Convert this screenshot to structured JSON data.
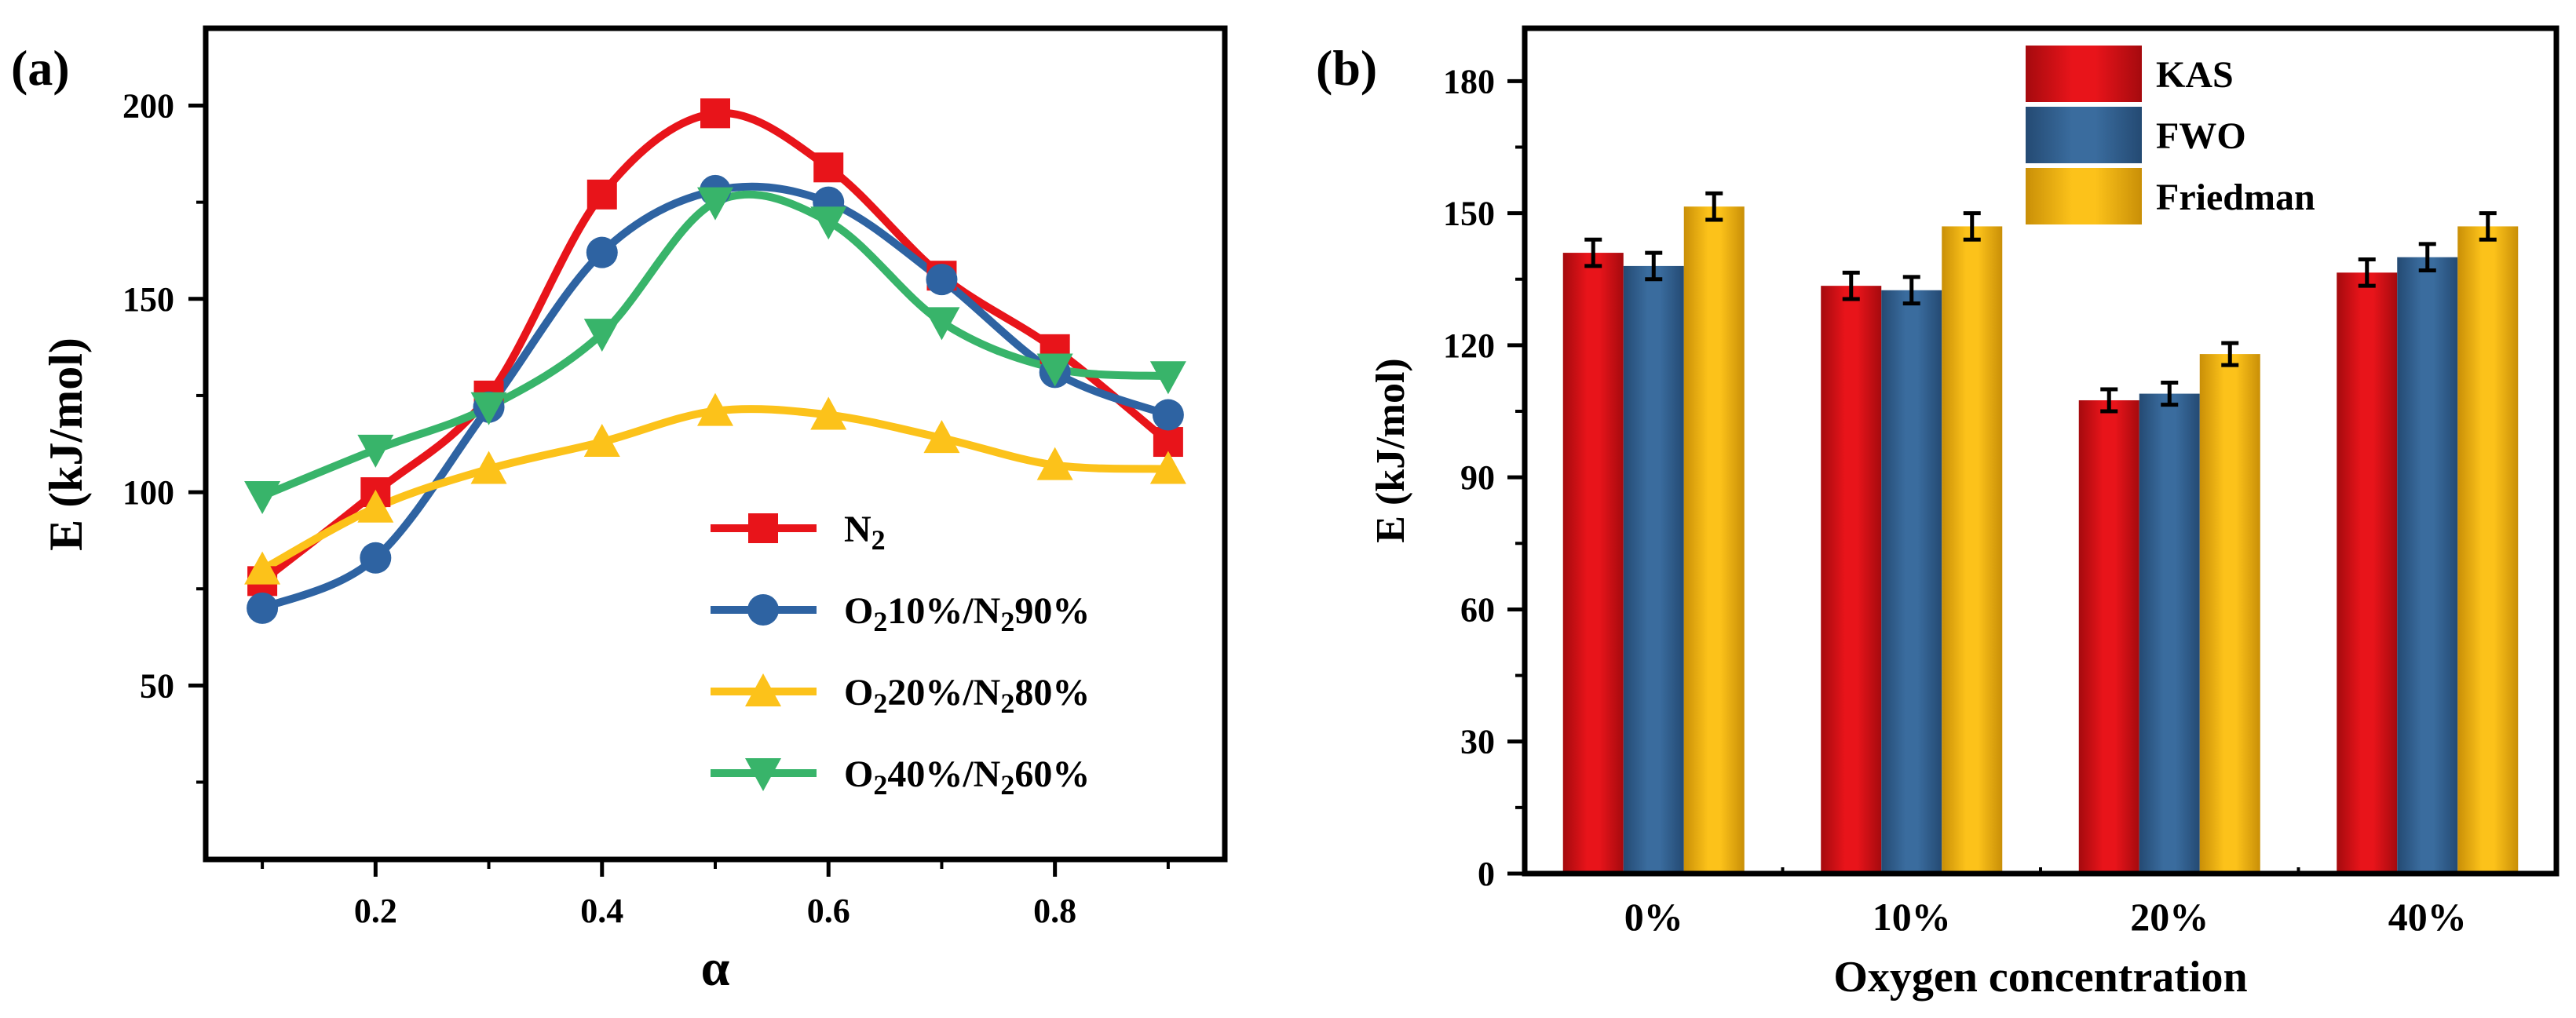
{
  "chart_data": [
    {
      "panel_label": "(a)",
      "type": "line",
      "xlabel": "α",
      "ylabel": "E (kJ/mol)",
      "x": [
        0.1,
        0.2,
        0.3,
        0.4,
        0.5,
        0.6,
        0.7,
        0.8,
        0.9
      ],
      "xlim": [
        0.05,
        0.95
      ],
      "ylim": [
        5,
        220
      ],
      "xticks": [
        "0.2",
        "0.4",
        "0.6",
        "0.8"
      ],
      "yticks": [
        "50",
        "100",
        "150",
        "200"
      ],
      "legend_position": "bottom-right",
      "series": [
        {
          "name": "N",
          "sub1": "2",
          "mid": "",
          "sub2": "",
          "tail": "",
          "marker": "square",
          "color": "#e8141a",
          "values": [
            77,
            100,
            125,
            177,
            198,
            184,
            156,
            137,
            113
          ]
        },
        {
          "name": "O",
          "sub1": "2",
          "mid": "10%/N",
          "sub2": "2",
          "tail": "90%",
          "marker": "circle",
          "color": "#2e63a2",
          "values": [
            70,
            83,
            122,
            162,
            178,
            175,
            155,
            131,
            120
          ]
        },
        {
          "name": "O",
          "sub1": "2",
          "mid": "20%/N",
          "sub2": "2",
          "tail": "80%",
          "marker": "triangle-up",
          "color": "#fcc21a",
          "values": [
            80,
            96,
            106,
            113,
            121,
            120,
            114,
            107,
            106
          ]
        },
        {
          "name": "O",
          "sub1": "2",
          "mid": "40%/N",
          "sub2": "2",
          "tail": "60%",
          "marker": "triangle-down",
          "color": "#38b46a",
          "values": [
            99,
            111,
            122,
            141,
            175,
            170,
            144,
            132,
            130
          ]
        }
      ]
    },
    {
      "panel_label": "(b)",
      "type": "bar",
      "xlabel": "Oxygen concentration",
      "ylabel": "E (kJ/mol)",
      "categories": [
        "0%",
        "10%",
        "20%",
        "40%"
      ],
      "ylim": [
        0,
        192
      ],
      "yticks": [
        "0",
        "30",
        "60",
        "90",
        "120",
        "150",
        "180"
      ],
      "legend_position": "top-right",
      "series": [
        {
          "name": "KAS",
          "color": "#e8141a",
          "dark": "#a50a0e",
          "values": [
            141,
            133.5,
            107.5,
            136.5
          ],
          "errors": [
            3,
            3,
            2.5,
            3
          ]
        },
        {
          "name": "FWO",
          "color": "#3a6c9e",
          "dark": "#244a73",
          "values": [
            138,
            132.5,
            109,
            140
          ],
          "errors": [
            3,
            3,
            2.5,
            3
          ]
        },
        {
          "name": "Friedman",
          "color": "#fcc21a",
          "dark": "#c98f07",
          "values": [
            151.5,
            147,
            118,
            147
          ],
          "errors": [
            3,
            3,
            2.5,
            3
          ]
        }
      ]
    }
  ]
}
